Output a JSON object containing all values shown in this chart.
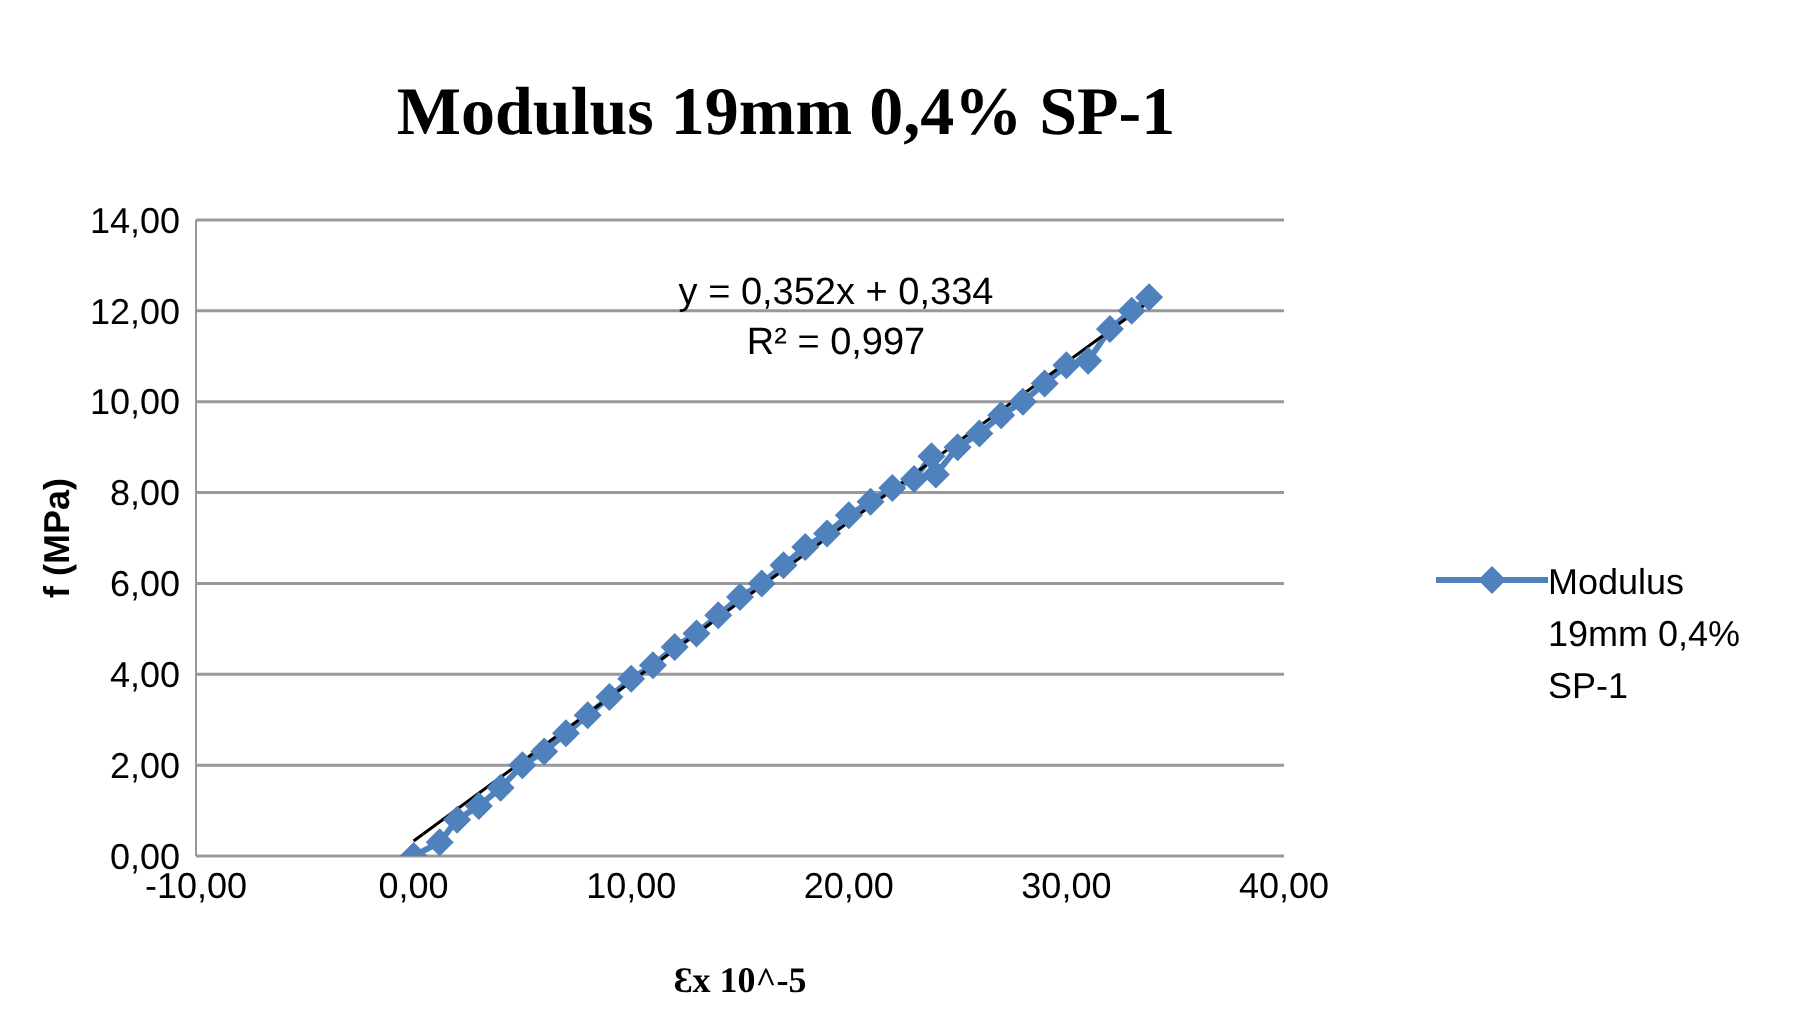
{
  "chart_data": {
    "type": "line",
    "title": "Modulus 19mm 0,4% SP-1",
    "xlabel": "Ɛx 10^-5",
    "ylabel": "f (MPa)",
    "xlim": [
      -10,
      40
    ],
    "xticks": [
      {
        "value": -10,
        "label": "-10,00"
      },
      {
        "value": 0,
        "label": "0,00"
      },
      {
        "value": 10,
        "label": "10,00"
      },
      {
        "value": 20,
        "label": "20,00"
      },
      {
        "value": 30,
        "label": "30,00"
      },
      {
        "value": 40,
        "label": "40,00"
      }
    ],
    "ylim": [
      0,
      14
    ],
    "yticks": [
      {
        "value": 0,
        "label": "0,00"
      },
      {
        "value": 2,
        "label": "2,00"
      },
      {
        "value": 4,
        "label": "4,00"
      },
      {
        "value": 6,
        "label": "6,00"
      },
      {
        "value": 8,
        "label": "8,00"
      },
      {
        "value": 10,
        "label": "10,00"
      },
      {
        "value": 12,
        "label": "12,00"
      },
      {
        "value": 14,
        "label": "14,00"
      }
    ],
    "grid": "y",
    "legend": "right",
    "marker": "diamond",
    "annotations": [
      "y = 0,352x + 0,334",
      "R² = 0,997"
    ],
    "series": [
      {
        "name": "Modulus 19mm 0,4% SP-1",
        "color": "#4f81bd",
        "x": [
          0,
          1.2,
          2,
          3,
          4,
          5,
          6,
          7,
          8,
          9,
          10,
          11,
          12,
          13,
          14,
          15,
          16,
          17,
          18,
          19,
          20,
          21,
          22,
          23,
          23.8,
          24,
          25,
          26,
          27,
          28,
          29,
          30,
          31,
          32,
          33,
          33.8
        ],
        "values": [
          0,
          0.3,
          0.8,
          1.1,
          1.5,
          2,
          2.3,
          2.7,
          3.1,
          3.5,
          3.9,
          4.2,
          4.6,
          4.9,
          5.3,
          5.7,
          6,
          6.4,
          6.8,
          7.1,
          7.5,
          7.8,
          8.1,
          8.3,
          8.8,
          8.4,
          9,
          9.3,
          9.7,
          10,
          10.4,
          10.8,
          10.9,
          11.6,
          12,
          12.3
        ]
      },
      {
        "type": "line",
        "color": "#000000",
        "marker": "none",
        "x": [
          0,
          33.8
        ],
        "values": [
          0.33,
          12.2
        ]
      }
    ]
  }
}
